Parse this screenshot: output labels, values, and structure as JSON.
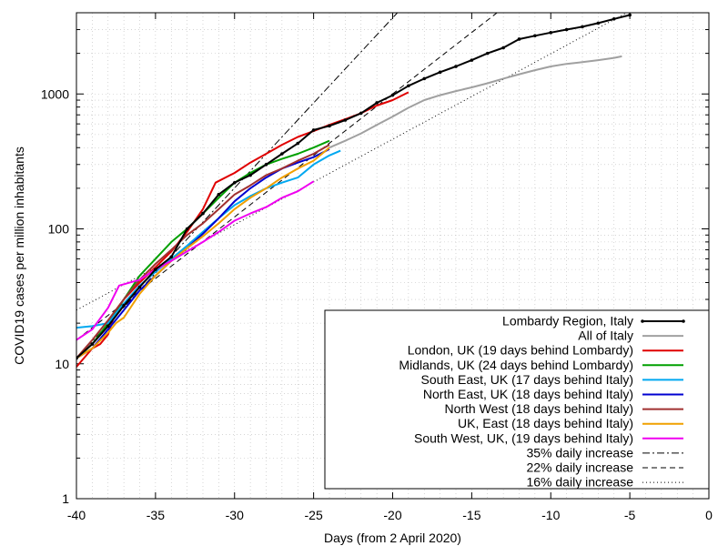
{
  "chart_data": {
    "type": "line",
    "title": "",
    "xlabel": "Days (from 2 April 2020)",
    "ylabel": "COVID19 cases per million inhabitants",
    "xlim": [
      -40,
      0
    ],
    "ylim": [
      1,
      4000
    ],
    "yscale": "log",
    "grid": true,
    "legend_position": "bottom-right",
    "x_ticks": [
      -40,
      -35,
      -30,
      -25,
      -20,
      -15,
      -10,
      -5,
      0
    ],
    "y_ticks": [
      1,
      10,
      100,
      1000
    ],
    "series": [
      {
        "name": "Lombardy Region, Italy",
        "color": "#000000",
        "style": "solid-markers",
        "x": [
          -40,
          -39,
          -38,
          -37,
          -36,
          -35,
          -34,
          -33,
          -32,
          -31,
          -30,
          -29,
          -28,
          -27,
          -26,
          -25,
          -24,
          -23,
          -22,
          -21,
          -20,
          -19,
          -18,
          -17,
          -16,
          -15,
          -14,
          -13,
          -12,
          -11,
          -10,
          -9,
          -8,
          -7,
          -6,
          -5
        ],
        "y": [
          11,
          14,
          19,
          27,
          37,
          50,
          62,
          100,
          130,
          180,
          220,
          250,
          300,
          360,
          430,
          540,
          580,
          640,
          720,
          860,
          980,
          1150,
          1300,
          1450,
          1600,
          1780,
          2000,
          2200,
          2550,
          2700,
          2850,
          3000,
          3150,
          3350,
          3600,
          3850
        ]
      },
      {
        "name": "All of Italy",
        "color": "#a0a0a0",
        "style": "solid",
        "x": [
          -24,
          -23,
          -22,
          -21,
          -20,
          -19,
          -18,
          -17,
          -16,
          -15,
          -14,
          -13,
          -12,
          -11,
          -10,
          -9,
          -8,
          -7,
          -6,
          -5.5
        ],
        "y": [
          400,
          450,
          510,
          590,
          680,
          790,
          900,
          980,
          1050,
          1120,
          1200,
          1300,
          1400,
          1500,
          1600,
          1670,
          1720,
          1780,
          1850,
          1900
        ]
      },
      {
        "name": "London, UK (19 days behind Lombardy)",
        "color": "#e00000",
        "style": "solid",
        "x": [
          -40,
          -39,
          -38.5,
          -38,
          -37.5,
          -37,
          -36,
          -35,
          -34,
          -33,
          -32,
          -31.2,
          -30,
          -29,
          -28,
          -27,
          -26,
          -25,
          -24,
          -23,
          -22,
          -21,
          -20,
          -19
        ],
        "y": [
          9.5,
          13,
          14,
          16.5,
          25,
          30,
          40,
          52,
          68,
          95,
          140,
          220,
          260,
          310,
          360,
          420,
          480,
          530,
          590,
          650,
          720,
          820,
          900,
          1030
        ]
      },
      {
        "name": "Midlands, UK (24 days behind Lombardy)",
        "color": "#00a000",
        "style": "solid",
        "x": [
          -40,
          -39,
          -38,
          -37,
          -36,
          -35,
          -34,
          -33,
          -32,
          -31,
          -30,
          -29,
          -28,
          -27,
          -26,
          -25,
          -24
        ],
        "y": [
          11,
          14,
          20,
          30,
          45,
          60,
          80,
          100,
          130,
          170,
          220,
          260,
          300,
          330,
          360,
          400,
          450
        ]
      },
      {
        "name": "South East, UK (17 days behind Italy)",
        "color": "#00a8f0",
        "style": "solid",
        "x": [
          -40,
          -39,
          -38,
          -37,
          -36,
          -35,
          -34,
          -33,
          -32,
          -31,
          -30,
          -29,
          -28,
          -27,
          -26,
          -25,
          -24,
          -23.3
        ],
        "y": [
          18.5,
          19,
          20,
          28,
          38,
          48,
          60,
          75,
          95,
          120,
          150,
          175,
          200,
          220,
          240,
          300,
          350,
          380
        ]
      },
      {
        "name": "North East, UK (18 days behind Italy)",
        "color": "#0000d0",
        "style": "solid",
        "x": [
          -40,
          -39,
          -38,
          -37,
          -36,
          -35,
          -34,
          -33,
          -32,
          -31,
          -30,
          -29,
          -28,
          -27,
          -26,
          -25,
          -24
        ],
        "y": [
          11,
          13,
          18,
          25,
          35,
          45,
          58,
          72,
          92,
          120,
          160,
          200,
          240,
          280,
          310,
          340,
          390
        ]
      },
      {
        "name": "North West (18 days behind Italy)",
        "color": "#a03030",
        "style": "solid",
        "x": [
          -40,
          -39,
          -38,
          -37,
          -36,
          -35,
          -34,
          -33,
          -32,
          -31,
          -30,
          -29,
          -28,
          -27,
          -26,
          -25,
          -24
        ],
        "y": [
          11,
          15,
          21,
          30,
          42,
          55,
          70,
          90,
          110,
          140,
          180,
          210,
          250,
          280,
          320,
          360,
          420
        ]
      },
      {
        "name": "UK, East (18 days behind Italy)",
        "color": "#f0a000",
        "style": "solid",
        "x": [
          -40,
          -39,
          -38,
          -37.5,
          -37,
          -36,
          -35,
          -34,
          -33,
          -32,
          -31,
          -30,
          -29,
          -28,
          -27,
          -26,
          -25,
          -24
        ],
        "y": [
          11,
          13,
          17,
          20,
          22,
          33,
          45,
          58,
          72,
          88,
          110,
          140,
          170,
          200,
          240,
          280,
          320,
          400
        ]
      },
      {
        "name": "South West, UK, (19 days behind Italy)",
        "color": "#f000f0",
        "style": "solid",
        "x": [
          -40,
          -39,
          -38,
          -37.3,
          -36,
          -35,
          -34,
          -33,
          -32,
          -31,
          -30,
          -29,
          -28,
          -27,
          -26,
          -25
        ],
        "y": [
          15,
          18,
          26,
          38,
          42,
          50,
          58,
          68,
          80,
          95,
          115,
          130,
          145,
          170,
          190,
          225
        ]
      },
      {
        "name": "35% daily increase",
        "color": "#000000",
        "style": "dash-dot",
        "x": [
          -40,
          -19.7
        ],
        "y": [
          11,
          4000
        ]
      },
      {
        "name": "22% daily increase",
        "color": "#000000",
        "style": "dashed",
        "x": [
          -40,
          -13.4
        ],
        "y": [
          15,
          4000
        ]
      },
      {
        "name": "16% daily increase",
        "color": "#000000",
        "style": "dotted",
        "x": [
          -40,
          -5.2
        ],
        "y": [
          25,
          4000
        ]
      }
    ]
  }
}
